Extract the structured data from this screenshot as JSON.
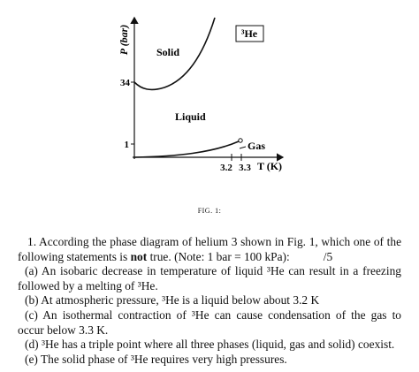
{
  "figure": {
    "y_axis_label": "P (bar)",
    "x_axis_label": "T (K)",
    "y_ticks": [
      "34",
      "1"
    ],
    "x_ticks": [
      "3.2",
      "3.3"
    ],
    "regions": [
      "Solid",
      "Liquid",
      "Gas"
    ],
    "badge": "³He",
    "caption": "FIG. 1:"
  },
  "question": {
    "number": "1.",
    "stem_before": "According the phase diagram of helium 3 shown in Fig. 1, which one of the following statements is",
    "stem_bold": "not",
    "stem_after": "true. (Note: 1 bar = 100 kPa):",
    "points": "/5",
    "options": [
      "(a) An isobaric decrease in temperature of liquid ³He can result in a freezing followed by a melting of ³He.",
      "(b) At atmospheric pressure, ³He is a liquid below about 3.2 K",
      "(c) An isothermal contraction of ³He can cause condensation of the gas to occur below 3.3 K.",
      "(d) ³He has a triple point where all three phases (liquid, gas and solid) coexist.",
      "(e) The solid phase of ³He requires very high pressures."
    ]
  }
}
